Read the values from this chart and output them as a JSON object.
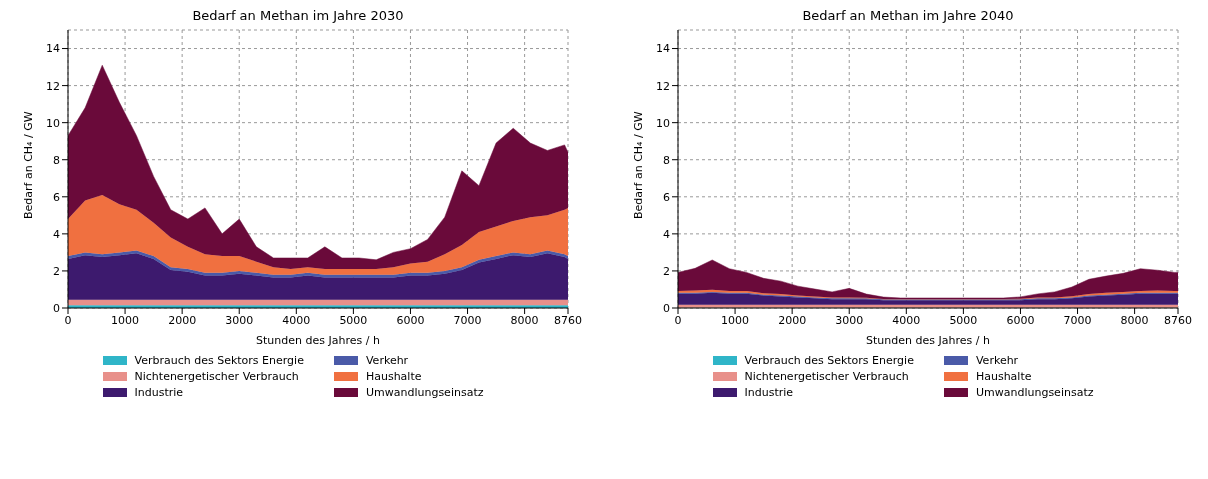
{
  "chart_data": [
    {
      "type": "area",
      "title": "Bedarf an Methan im Jahre 2030",
      "xlabel": "Stunden des Jahres / h",
      "ylabel": "Bedarf an CH₄ / GW",
      "stacked": true,
      "grid": true,
      "legend": "bottom",
      "xlim": [
        0,
        8760
      ],
      "xticks": [
        0,
        1000,
        2000,
        3000,
        4000,
        5000,
        6000,
        7000,
        8000,
        8760
      ],
      "ylim": [
        0,
        15
      ],
      "yticks": [
        0,
        2,
        4,
        6,
        8,
        10,
        12,
        14
      ],
      "x": [
        0,
        300,
        600,
        900,
        1200,
        1500,
        1800,
        2100,
        2400,
        2700,
        3000,
        3300,
        3600,
        3900,
        4200,
        4500,
        4800,
        5100,
        5400,
        5700,
        6000,
        6300,
        6600,
        6900,
        7200,
        7500,
        7800,
        8100,
        8400,
        8700,
        8760
      ],
      "series": [
        {
          "name": "Verbrauch des Sektors Energie",
          "color": "#2fb5c8",
          "values": [
            0.15,
            0.15,
            0.15,
            0.15,
            0.15,
            0.15,
            0.15,
            0.15,
            0.15,
            0.15,
            0.15,
            0.15,
            0.15,
            0.15,
            0.15,
            0.15,
            0.15,
            0.15,
            0.15,
            0.15,
            0.15,
            0.15,
            0.15,
            0.15,
            0.15,
            0.15,
            0.15,
            0.15,
            0.15,
            0.15,
            0.15
          ]
        },
        {
          "name": "Nichtenergetischer Verbrauch",
          "color": "#e8908a",
          "values": [
            0.3,
            0.3,
            0.3,
            0.3,
            0.3,
            0.3,
            0.3,
            0.3,
            0.3,
            0.3,
            0.3,
            0.3,
            0.3,
            0.3,
            0.3,
            0.3,
            0.3,
            0.3,
            0.3,
            0.3,
            0.3,
            0.3,
            0.3,
            0.3,
            0.3,
            0.3,
            0.3,
            0.3,
            0.3,
            0.3,
            0.3
          ]
        },
        {
          "name": "Industrie",
          "color": "#3d1a6e",
          "values": [
            2.2,
            2.4,
            2.3,
            2.4,
            2.5,
            2.2,
            1.6,
            1.5,
            1.3,
            1.3,
            1.4,
            1.3,
            1.2,
            1.2,
            1.3,
            1.2,
            1.2,
            1.2,
            1.2,
            1.2,
            1.3,
            1.3,
            1.4,
            1.6,
            2.0,
            2.2,
            2.4,
            2.3,
            2.5,
            2.3,
            2.2
          ]
        },
        {
          "name": "Verkehr",
          "color": "#4a5aa8",
          "values": [
            0.15,
            0.15,
            0.15,
            0.15,
            0.15,
            0.15,
            0.15,
            0.15,
            0.15,
            0.15,
            0.15,
            0.15,
            0.15,
            0.15,
            0.15,
            0.15,
            0.15,
            0.15,
            0.15,
            0.15,
            0.15,
            0.15,
            0.15,
            0.15,
            0.15,
            0.15,
            0.15,
            0.15,
            0.15,
            0.15,
            0.15
          ]
        },
        {
          "name": "Haushalte",
          "color": "#f07040",
          "values": [
            2.0,
            2.8,
            3.2,
            2.6,
            2.2,
            1.8,
            1.6,
            1.2,
            1.0,
            0.9,
            0.8,
            0.6,
            0.4,
            0.3,
            0.3,
            0.3,
            0.3,
            0.3,
            0.3,
            0.4,
            0.5,
            0.6,
            0.9,
            1.2,
            1.5,
            1.6,
            1.7,
            2.0,
            1.9,
            2.4,
            2.6
          ]
        },
        {
          "name": "Umwandlungseinsatz",
          "color": "#6a0a3a",
          "values": [
            4.5,
            5.0,
            7.0,
            5.5,
            4.0,
            2.5,
            1.5,
            1.5,
            2.5,
            1.2,
            2.0,
            0.8,
            0.5,
            0.6,
            0.5,
            1.2,
            0.6,
            0.6,
            0.5,
            0.8,
            0.8,
            1.2,
            2.0,
            4.0,
            2.5,
            4.5,
            5.0,
            4.0,
            3.5,
            3.5,
            3.0
          ]
        }
      ]
    },
    {
      "type": "area",
      "title": "Bedarf an Methan im Jahre 2040",
      "xlabel": "Stunden des Jahres / h",
      "ylabel": "Bedarf an CH₄ / GW",
      "stacked": true,
      "grid": true,
      "legend": "bottom",
      "xlim": [
        0,
        8760
      ],
      "xticks": [
        0,
        1000,
        2000,
        3000,
        4000,
        5000,
        6000,
        7000,
        8000,
        8760
      ],
      "ylim": [
        0,
        15
      ],
      "yticks": [
        0,
        2,
        4,
        6,
        8,
        10,
        12,
        14
      ],
      "x": [
        0,
        300,
        600,
        900,
        1200,
        1500,
        1800,
        2100,
        2400,
        2700,
        3000,
        3300,
        3600,
        3900,
        4200,
        4500,
        4800,
        5100,
        5400,
        5700,
        6000,
        6300,
        6600,
        6900,
        7200,
        7500,
        7800,
        8100,
        8400,
        8700,
        8760
      ],
      "series": [
        {
          "name": "Verbrauch des Sektors Energie",
          "color": "#2fb5c8",
          "values": [
            0.02,
            0.02,
            0.02,
            0.02,
            0.02,
            0.02,
            0.02,
            0.02,
            0.02,
            0.02,
            0.02,
            0.02,
            0.02,
            0.02,
            0.02,
            0.02,
            0.02,
            0.02,
            0.02,
            0.02,
            0.02,
            0.02,
            0.02,
            0.02,
            0.02,
            0.02,
            0.02,
            0.02,
            0.02,
            0.02,
            0.02
          ]
        },
        {
          "name": "Nichtenergetischer Verbrauch",
          "color": "#e8908a",
          "values": [
            0.15,
            0.15,
            0.15,
            0.15,
            0.15,
            0.15,
            0.15,
            0.15,
            0.15,
            0.15,
            0.15,
            0.15,
            0.15,
            0.15,
            0.15,
            0.15,
            0.15,
            0.15,
            0.15,
            0.15,
            0.15,
            0.15,
            0.15,
            0.15,
            0.15,
            0.15,
            0.15,
            0.15,
            0.15,
            0.15,
            0.15
          ]
        },
        {
          "name": "Industrie",
          "color": "#3d1a6e",
          "values": [
            0.6,
            0.6,
            0.65,
            0.6,
            0.6,
            0.5,
            0.45,
            0.4,
            0.35,
            0.3,
            0.3,
            0.3,
            0.25,
            0.25,
            0.25,
            0.25,
            0.25,
            0.25,
            0.25,
            0.25,
            0.25,
            0.3,
            0.3,
            0.35,
            0.45,
            0.5,
            0.55,
            0.6,
            0.6,
            0.6,
            0.6
          ]
        },
        {
          "name": "Verkehr",
          "color": "#4a5aa8",
          "values": [
            0.05,
            0.05,
            0.05,
            0.05,
            0.05,
            0.05,
            0.05,
            0.05,
            0.05,
            0.05,
            0.05,
            0.05,
            0.05,
            0.05,
            0.05,
            0.05,
            0.05,
            0.05,
            0.05,
            0.05,
            0.05,
            0.05,
            0.05,
            0.05,
            0.05,
            0.05,
            0.05,
            0.05,
            0.05,
            0.05,
            0.05
          ]
        },
        {
          "name": "Haushalte",
          "color": "#f07040",
          "values": [
            0.1,
            0.12,
            0.12,
            0.1,
            0.1,
            0.08,
            0.08,
            0.06,
            0.05,
            0.05,
            0.04,
            0.03,
            0.02,
            0.02,
            0.02,
            0.02,
            0.02,
            0.02,
            0.02,
            0.02,
            0.03,
            0.04,
            0.05,
            0.06,
            0.08,
            0.1,
            0.1,
            0.1,
            0.12,
            0.1,
            0.1
          ]
        },
        {
          "name": "Umwandlungseinsatz",
          "color": "#6a0a3a",
          "values": [
            1.0,
            1.2,
            1.6,
            1.2,
            1.0,
            0.8,
            0.7,
            0.5,
            0.4,
            0.3,
            0.5,
            0.2,
            0.1,
            0.05,
            0.05,
            0.05,
            0.05,
            0.05,
            0.05,
            0.05,
            0.1,
            0.2,
            0.3,
            0.5,
            0.8,
            0.9,
            1.0,
            1.2,
            1.1,
            1.0,
            1.0
          ]
        }
      ]
    }
  ]
}
